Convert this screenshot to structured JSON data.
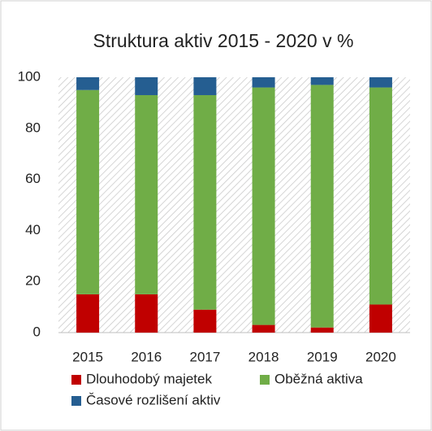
{
  "chart_data": {
    "type": "stacked_bar",
    "title": "Struktura aktiv 2015 - 2020 v %",
    "categories": [
      "2015",
      "2016",
      "2017",
      "2018",
      "2019",
      "2020"
    ],
    "series": [
      {
        "name": "Dlouhodobý majetek",
        "color": "#c00000",
        "values": [
          15,
          15,
          9,
          3,
          2,
          11
        ]
      },
      {
        "name": "Oběžná aktiva",
        "color": "#70ad47",
        "values": [
          80,
          78,
          84,
          93,
          95,
          85
        ]
      },
      {
        "name": "Časové rozlišení aktiv",
        "color": "#255e91",
        "values": [
          5,
          7,
          7,
          4,
          3,
          4
        ]
      }
    ],
    "ylim": [
      0,
      100
    ],
    "yticks": [
      0,
      20,
      40,
      60,
      80,
      100
    ],
    "grid": false,
    "legend": "bottom"
  }
}
